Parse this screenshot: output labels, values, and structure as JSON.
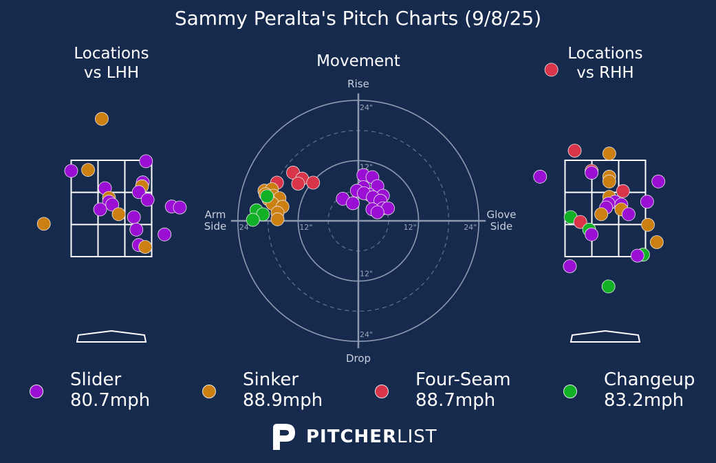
{
  "title": "Sammy Peralta's Pitch Charts (9/8/25)",
  "panels": {
    "lhh_title": "Locations\nvs LHH",
    "movement_title": "Movement",
    "rhh_title": "Locations\nvs RHH"
  },
  "colors": {
    "background": "#162a4e",
    "Slider": "#9b0fd4",
    "Sinker": "#cc8012",
    "Four-Seam": "#d8344a",
    "Changeup": "#11b027"
  },
  "legend": [
    {
      "pitch": "Slider",
      "speed": "80.7mph"
    },
    {
      "pitch": "Sinker",
      "speed": "88.9mph"
    },
    {
      "pitch": "Four-Seam",
      "speed": "88.7mph"
    },
    {
      "pitch": "Changeup",
      "speed": "83.2mph"
    }
  ],
  "brand": {
    "bold": "PITCHER",
    "light": "LIST"
  },
  "chart_data": [
    {
      "type": "scatter",
      "name": "Locations vs LHH",
      "x_unit": "strike-zone widths from center (+ = right of image)",
      "y_unit": "strike-zone heights from center (+ = up)",
      "points": [
        {
          "pitch": "Sinker",
          "x": -0.12,
          "y": 0.93
        },
        {
          "pitch": "Slider",
          "x": -0.5,
          "y": 0.39
        },
        {
          "pitch": "Sinker",
          "x": -0.29,
          "y": 0.4
        },
        {
          "pitch": "Slider",
          "x": 0.43,
          "y": 0.49
        },
        {
          "pitch": "Slider",
          "x": 0.39,
          "y": 0.27
        },
        {
          "pitch": "Sinker",
          "x": 0.38,
          "y": 0.23
        },
        {
          "pitch": "Slider",
          "x": -0.08,
          "y": 0.21
        },
        {
          "pitch": "Slider",
          "x": 0.34,
          "y": 0.17
        },
        {
          "pitch": "Sinker",
          "x": -0.03,
          "y": 0.11
        },
        {
          "pitch": "Slider",
          "x": 0.45,
          "y": 0.09
        },
        {
          "pitch": "Slider",
          "x": -0.03,
          "y": 0.07
        },
        {
          "pitch": "Slider",
          "x": 0.01,
          "y": 0.04
        },
        {
          "pitch": "Slider",
          "x": 0.75,
          "y": 0.02
        },
        {
          "pitch": "Slider",
          "x": 0.85,
          "y": 0.01
        },
        {
          "pitch": "Slider",
          "x": -0.14,
          "y": -0.01
        },
        {
          "pitch": "Sinker",
          "x": 0.09,
          "y": -0.06
        },
        {
          "pitch": "Slider",
          "x": 0.28,
          "y": -0.09
        },
        {
          "pitch": "Sinker",
          "x": -0.84,
          "y": -0.16
        },
        {
          "pitch": "Slider",
          "x": 0.31,
          "y": -0.22
        },
        {
          "pitch": "Slider",
          "x": 0.66,
          "y": -0.27
        },
        {
          "pitch": "Slider",
          "x": 0.34,
          "y": -0.38
        },
        {
          "pitch": "Sinker",
          "x": 0.42,
          "y": -0.4
        }
      ]
    },
    {
      "type": "scatter",
      "name": "Movement",
      "x_unit": "inches",
      "y_unit": "inches",
      "axis_labels": {
        "top": "Rise",
        "bottom": "Drop",
        "left": "Arm\nSide",
        "right": "Glove\nSide"
      },
      "ring_labels": [
        "12\"",
        "24\""
      ],
      "xlim": [
        -24,
        24
      ],
      "ylim": [
        -24,
        24
      ],
      "points": [
        {
          "pitch": "Four-Seam",
          "x": -13.0,
          "y": 9.6
        },
        {
          "pitch": "Four-Seam",
          "x": -11.2,
          "y": 8.4
        },
        {
          "pitch": "Four-Seam",
          "x": -12.0,
          "y": 7.4
        },
        {
          "pitch": "Four-Seam",
          "x": -9.0,
          "y": 7.6
        },
        {
          "pitch": "Four-Seam",
          "x": -16.2,
          "y": 7.6
        },
        {
          "pitch": "Sinker",
          "x": -18.7,
          "y": 6.0
        },
        {
          "pitch": "Sinker",
          "x": -17.2,
          "y": 6.3
        },
        {
          "pitch": "Sinker",
          "x": -18.5,
          "y": 5.3
        },
        {
          "pitch": "Sinker",
          "x": -16.9,
          "y": 5.0
        },
        {
          "pitch": "Sinker",
          "x": -15.7,
          "y": 4.5
        },
        {
          "pitch": "Sinker",
          "x": -17.9,
          "y": 4.3
        },
        {
          "pitch": "Sinker",
          "x": -17.1,
          "y": 3.4
        },
        {
          "pitch": "Sinker",
          "x": -15.1,
          "y": 2.8
        },
        {
          "pitch": "Sinker",
          "x": -16.1,
          "y": 1.6
        },
        {
          "pitch": "Sinker",
          "x": -16.1,
          "y": 0.3
        },
        {
          "pitch": "Changeup",
          "x": -18.2,
          "y": 4.9
        },
        {
          "pitch": "Changeup",
          "x": -20.3,
          "y": 2.1
        },
        {
          "pitch": "Changeup",
          "x": -19.0,
          "y": 1.3
        },
        {
          "pitch": "Changeup",
          "x": -21.0,
          "y": 0.2
        },
        {
          "pitch": "Slider",
          "x": 1.0,
          "y": 9.1
        },
        {
          "pitch": "Slider",
          "x": 2.8,
          "y": 8.7
        },
        {
          "pitch": "Slider",
          "x": 1.0,
          "y": 6.7
        },
        {
          "pitch": "Slider",
          "x": 3.8,
          "y": 6.9
        },
        {
          "pitch": "Slider",
          "x": 4.9,
          "y": 5.0
        },
        {
          "pitch": "Slider",
          "x": 2.2,
          "y": 5.2
        },
        {
          "pitch": "Slider",
          "x": -0.3,
          "y": 6.0
        },
        {
          "pitch": "Slider",
          "x": 1.1,
          "y": 5.5
        },
        {
          "pitch": "Slider",
          "x": 2.9,
          "y": 4.7
        },
        {
          "pitch": "Slider",
          "x": 4.4,
          "y": 4.0
        },
        {
          "pitch": "Slider",
          "x": -3.1,
          "y": 4.4
        },
        {
          "pitch": "Slider",
          "x": -1.1,
          "y": 3.5
        },
        {
          "pitch": "Slider",
          "x": 4.9,
          "y": 2.5
        },
        {
          "pitch": "Slider",
          "x": 5.9,
          "y": 2.5
        },
        {
          "pitch": "Slider",
          "x": 2.8,
          "y": 2.3
        },
        {
          "pitch": "Slider",
          "x": 3.8,
          "y": 1.7
        }
      ]
    },
    {
      "type": "scatter",
      "name": "Locations vs RHH",
      "x_unit": "strike-zone widths from center (+ = right of image)",
      "y_unit": "strike-zone heights from center (+ = up)",
      "points": [
        {
          "pitch": "Four-Seam",
          "x": -0.67,
          "y": 1.44
        },
        {
          "pitch": "Four-Seam",
          "x": -0.38,
          "y": 0.6
        },
        {
          "pitch": "Sinker",
          "x": 0.05,
          "y": 0.57
        },
        {
          "pitch": "Slider",
          "x": -0.81,
          "y": 0.33
        },
        {
          "pitch": "Four-Seam",
          "x": -0.17,
          "y": 0.39
        },
        {
          "pitch": "Slider",
          "x": -0.17,
          "y": 0.37
        },
        {
          "pitch": "Sinker",
          "x": 0.05,
          "y": 0.33
        },
        {
          "pitch": "Sinker",
          "x": 0.05,
          "y": 0.28
        },
        {
          "pitch": "Slider",
          "x": 0.66,
          "y": 0.28
        },
        {
          "pitch": "Four-Seam",
          "x": 0.22,
          "y": 0.18
        },
        {
          "pitch": "Sinker",
          "x": 0.05,
          "y": 0.12
        },
        {
          "pitch": "Slider",
          "x": 0.12,
          "y": 0.07
        },
        {
          "pitch": "Slider",
          "x": 0.04,
          "y": 0.05
        },
        {
          "pitch": "Slider",
          "x": 0.52,
          "y": 0.07
        },
        {
          "pitch": "Slider",
          "x": 0.2,
          "y": 0.04
        },
        {
          "pitch": "Slider",
          "x": 0.01,
          "y": 0.01
        },
        {
          "pitch": "Sinker",
          "x": 0.2,
          "y": -0.01
        },
        {
          "pitch": "Slider",
          "x": 0.29,
          "y": -0.06
        },
        {
          "pitch": "Sinker",
          "x": -0.05,
          "y": -0.06
        },
        {
          "pitch": "Changeup",
          "x": -0.43,
          "y": -0.09
        },
        {
          "pitch": "Four-Seam",
          "x": -0.31,
          "y": -0.14
        },
        {
          "pitch": "Changeup",
          "x": -0.2,
          "y": -0.22
        },
        {
          "pitch": "Slider",
          "x": -0.17,
          "y": -0.27
        },
        {
          "pitch": "Sinker",
          "x": 0.53,
          "y": -0.17
        },
        {
          "pitch": "Sinker",
          "x": 0.64,
          "y": -0.35
        },
        {
          "pitch": "Changeup",
          "x": 0.47,
          "y": -0.48
        },
        {
          "pitch": "Slider",
          "x": 0.4,
          "y": -0.49
        },
        {
          "pitch": "Slider",
          "x": -0.44,
          "y": -0.6
        },
        {
          "pitch": "Changeup",
          "x": 0.04,
          "y": -0.81
        }
      ]
    }
  ]
}
